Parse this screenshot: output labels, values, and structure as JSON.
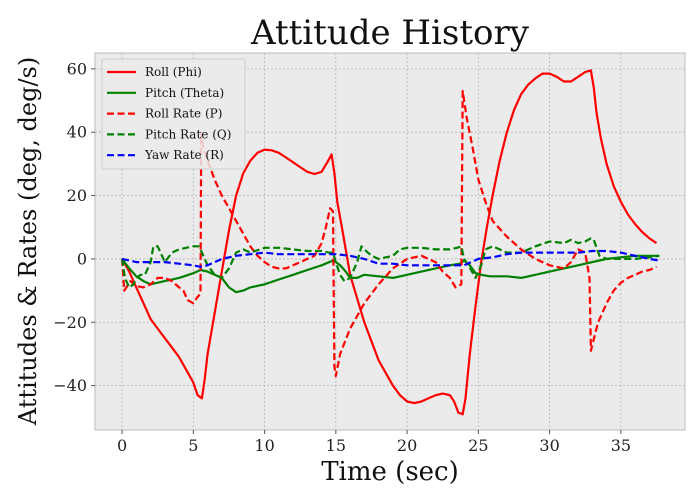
{
  "chart_data": {
    "type": "line",
    "title": "Attitude History",
    "xlabel": "Time (sec)",
    "ylabel": "Attitudes & Rates (deg, deg/s)",
    "xlim": [
      -1.9,
      39.5
    ],
    "ylim": [
      -54,
      65
    ],
    "xticks": [
      0,
      5,
      10,
      15,
      20,
      25,
      30,
      35
    ],
    "yticks": [
      -40,
      -20,
      0,
      20,
      40,
      60
    ],
    "grid": true,
    "legend_position": "top-left",
    "background": "#ebebeb",
    "series": [
      {
        "name": "Roll (Phi)",
        "color": "#ff0000",
        "dash": "solid",
        "x": [
          0,
          0.5,
          1,
          1.5,
          2,
          2.5,
          3,
          3.5,
          4,
          4.5,
          5,
          5.3,
          5.6,
          5.8,
          6,
          6.5,
          7,
          7.5,
          8,
          8.5,
          9,
          9.5,
          10,
          10.5,
          11,
          11.5,
          12,
          12.5,
          13,
          13.5,
          14,
          14.4,
          14.7,
          14.9,
          15.1,
          15.5,
          16,
          17,
          18,
          19,
          19.5,
          20,
          20.5,
          21,
          21.5,
          22,
          22.5,
          23,
          23.3,
          23.6,
          23.9,
          24.1,
          24.4,
          24.8,
          25.2,
          25.6,
          26,
          26.5,
          27,
          27.5,
          28,
          28.5,
          29,
          29.5,
          30,
          30.5,
          31,
          31.5,
          32,
          32.5,
          32.9,
          33.1,
          33.3,
          33.6,
          34,
          34.5,
          35,
          35.5,
          36,
          36.5,
          37,
          37.5
        ],
        "y": [
          0,
          -4,
          -9,
          -14,
          -19,
          -22,
          -25,
          -28,
          -31,
          -35,
          -39,
          -43,
          -44,
          -38,
          -30,
          -17,
          -4,
          9,
          20,
          27,
          31,
          33.5,
          34.5,
          34.3,
          33.5,
          32,
          30.5,
          29,
          27.5,
          26.8,
          27.5,
          30.5,
          33,
          27,
          18,
          8,
          -5,
          -20,
          -32,
          -40,
          -43,
          -45,
          -45.5,
          -45,
          -44,
          -43,
          -42.5,
          -43,
          -45,
          -48.5,
          -49,
          -44,
          -30,
          -15,
          -1,
          10,
          20,
          31,
          40,
          47,
          52,
          55,
          57,
          58.5,
          58.5,
          57.5,
          56,
          56,
          57.5,
          59,
          59.5,
          54,
          46,
          38,
          30,
          23,
          18,
          14,
          11,
          8.5,
          6.5,
          5
        ]
      },
      {
        "name": "Pitch (Theta)",
        "color": "#008000",
        "dash": "solid",
        "x": [
          0,
          0.5,
          1,
          1.5,
          2,
          2.5,
          3,
          4,
          5,
          5.5,
          6,
          6.5,
          7,
          7.5,
          8,
          8.5,
          9,
          10,
          11,
          12,
          13,
          14,
          14.8,
          15,
          15.3,
          15.7,
          16,
          16.5,
          17,
          18,
          19,
          20,
          21,
          22,
          23,
          23.7,
          24,
          24.4,
          24.8,
          25.2,
          25.8,
          26.5,
          27,
          28,
          29,
          30,
          31,
          32,
          33,
          33.5,
          34,
          35,
          36,
          37,
          37.7
        ],
        "y": [
          0,
          -3,
          -5.5,
          -7,
          -8,
          -7.5,
          -7,
          -6,
          -4.5,
          -3.5,
          -4,
          -5,
          -6,
          -9,
          -10.5,
          -10,
          -9,
          -8,
          -6.5,
          -5,
          -3.5,
          -2,
          -0.5,
          -1,
          -2,
          -4,
          -6,
          -6,
          -5,
          -5.5,
          -6,
          -5,
          -4,
          -3,
          -2,
          -1.5,
          -0.5,
          -2,
          -4.5,
          -5,
          -5.5,
          -5.5,
          -5.5,
          -6,
          -5,
          -4,
          -3,
          -2,
          -1,
          -0.5,
          0,
          0.5,
          1,
          1,
          1
        ]
      },
      {
        "name": "Roll Rate (P)",
        "color": "#ff0000",
        "dash": "dashed",
        "x": [
          0,
          0.15,
          0.3,
          0.6,
          1,
          1.5,
          2,
          2.5,
          3,
          3.5,
          4,
          4.3,
          4.6,
          5,
          5.3,
          5.5,
          5.55,
          5.65,
          6,
          6.5,
          7,
          7.5,
          8,
          8.5,
          9,
          9.5,
          10,
          10.5,
          11,
          11.5,
          12,
          12.5,
          13,
          13.5,
          14,
          14.3,
          14.6,
          14.8,
          14.9,
          15,
          15.3,
          16,
          17,
          18,
          19,
          20,
          21,
          22,
          22.5,
          23,
          23.4,
          23.8,
          23.9,
          24,
          24.2,
          24.6,
          25,
          25.5,
          26,
          27,
          28,
          29,
          30,
          31,
          31.5,
          32,
          32.5,
          32.8,
          32.9,
          33,
          33.4,
          34,
          34.5,
          35,
          35.5,
          36,
          36.5,
          37,
          37.5
        ],
        "y": [
          0,
          -10,
          -9,
          -7,
          -8.5,
          -9,
          -8,
          -6,
          -6,
          -7,
          -9,
          -10,
          -13,
          -14,
          -12,
          -11,
          40,
          36,
          31,
          25,
          20,
          16,
          12,
          8,
          4,
          1,
          -1,
          -2.5,
          -3,
          -3,
          -2,
          -1,
          0,
          1,
          5,
          10,
          16,
          15,
          -34,
          -37,
          -30,
          -22,
          -14,
          -8,
          -3,
          0,
          1,
          -1,
          -4,
          -6,
          -9,
          -8,
          53,
          50,
          44,
          35,
          25,
          18,
          12,
          7,
          3,
          0,
          -2,
          -3,
          -1,
          3,
          2,
          -6,
          -29,
          -27,
          -20,
          -14,
          -10,
          -7.5,
          -6,
          -5,
          -4,
          -3.5,
          -2.5
        ]
      },
      {
        "name": "Pitch Rate (Q)",
        "color": "#008000",
        "dash": "dashed",
        "x": [
          0,
          0.2,
          0.5,
          0.8,
          1,
          1.3,
          1.6,
          2,
          2.2,
          2.5,
          2.8,
          3,
          3.5,
          4,
          4.5,
          5,
          5.4,
          5.6,
          6,
          6.5,
          7,
          7.5,
          8,
          8.5,
          9,
          10,
          11,
          12,
          13,
          14,
          14.5,
          14.8,
          15,
          15.3,
          15.6,
          16,
          16.5,
          16.8,
          17,
          17.5,
          18,
          19,
          19.5,
          20,
          21,
          22,
          23,
          23.5,
          23.8,
          24,
          24.3,
          24.8,
          25.2,
          25.5,
          26,
          26.5,
          27,
          28,
          29,
          30,
          31,
          31.5,
          32,
          32.5,
          32.9,
          33.1,
          33.5,
          34,
          35,
          36,
          37,
          37.7
        ],
        "y": [
          0,
          -6,
          -9,
          -8,
          -6,
          -5,
          -5,
          -1,
          4,
          4,
          1,
          -1,
          2,
          3,
          3.5,
          4,
          4,
          2,
          -2,
          -5,
          -6,
          -3,
          2,
          3,
          2,
          3.5,
          3.5,
          3,
          2.5,
          2.5,
          2,
          2,
          -1,
          -5,
          -7,
          -6,
          -1,
          4,
          3,
          1,
          0,
          1,
          3,
          3.5,
          3.5,
          3,
          3,
          3.5,
          4,
          0,
          -2,
          -6,
          -2,
          3,
          4,
          3,
          2,
          2,
          4,
          5.5,
          5,
          6,
          5,
          5.5,
          6.5,
          6,
          1,
          0,
          0,
          0,
          0.5,
          1
        ]
      },
      {
        "name": "Yaw Rate (R)",
        "color": "#0000ff",
        "dash": "dashed",
        "x": [
          0,
          0.5,
          1,
          2,
          3,
          4,
          5,
          5.5,
          6,
          7,
          8,
          9,
          10,
          11,
          12,
          13,
          14,
          15,
          16,
          17,
          18,
          19,
          20,
          21,
          22,
          23,
          24,
          25,
          26,
          27,
          28,
          29,
          30,
          31,
          32,
          33,
          34,
          35,
          36,
          37,
          37.7
        ],
        "y": [
          0,
          -0.5,
          -1,
          -1,
          -1,
          -1.5,
          -2,
          -2.5,
          -2,
          0,
          1,
          1.5,
          2,
          1.5,
          1.5,
          1.5,
          1.5,
          1.5,
          1,
          0,
          -1.5,
          -1.5,
          -2,
          -2,
          -2,
          -2,
          -2,
          0,
          0.5,
          1.5,
          2,
          2,
          2,
          2,
          2,
          2.5,
          2.5,
          2,
          1,
          0,
          -0.5
        ]
      }
    ]
  }
}
